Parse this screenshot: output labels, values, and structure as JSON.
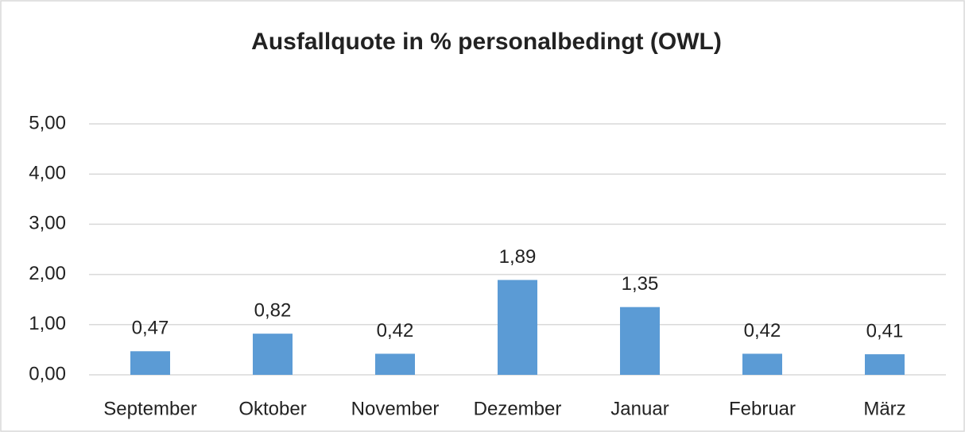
{
  "chart_data": {
    "type": "bar",
    "title": "Ausfallquote in % personalbedingt (OWL)",
    "categories": [
      "September",
      "Oktober",
      "November",
      "Dezember",
      "Januar",
      "Februar",
      "März"
    ],
    "values": [
      0.47,
      0.82,
      0.42,
      1.89,
      1.35,
      0.42,
      0.41
    ],
    "value_labels": [
      "0,47",
      "0,82",
      "0,42",
      "1,89",
      "1,35",
      "0,42",
      "0,41"
    ],
    "color": "#5b9bd5",
    "ylim": [
      0,
      5
    ],
    "yticks": [
      {
        "value": 0,
        "label": "0,00"
      },
      {
        "value": 1,
        "label": "1,00"
      },
      {
        "value": 2,
        "label": "2,00"
      },
      {
        "value": 3,
        "label": "3,00"
      },
      {
        "value": 4,
        "label": "4,00"
      },
      {
        "value": 5,
        "label": "5,00"
      }
    ],
    "grid": true
  }
}
